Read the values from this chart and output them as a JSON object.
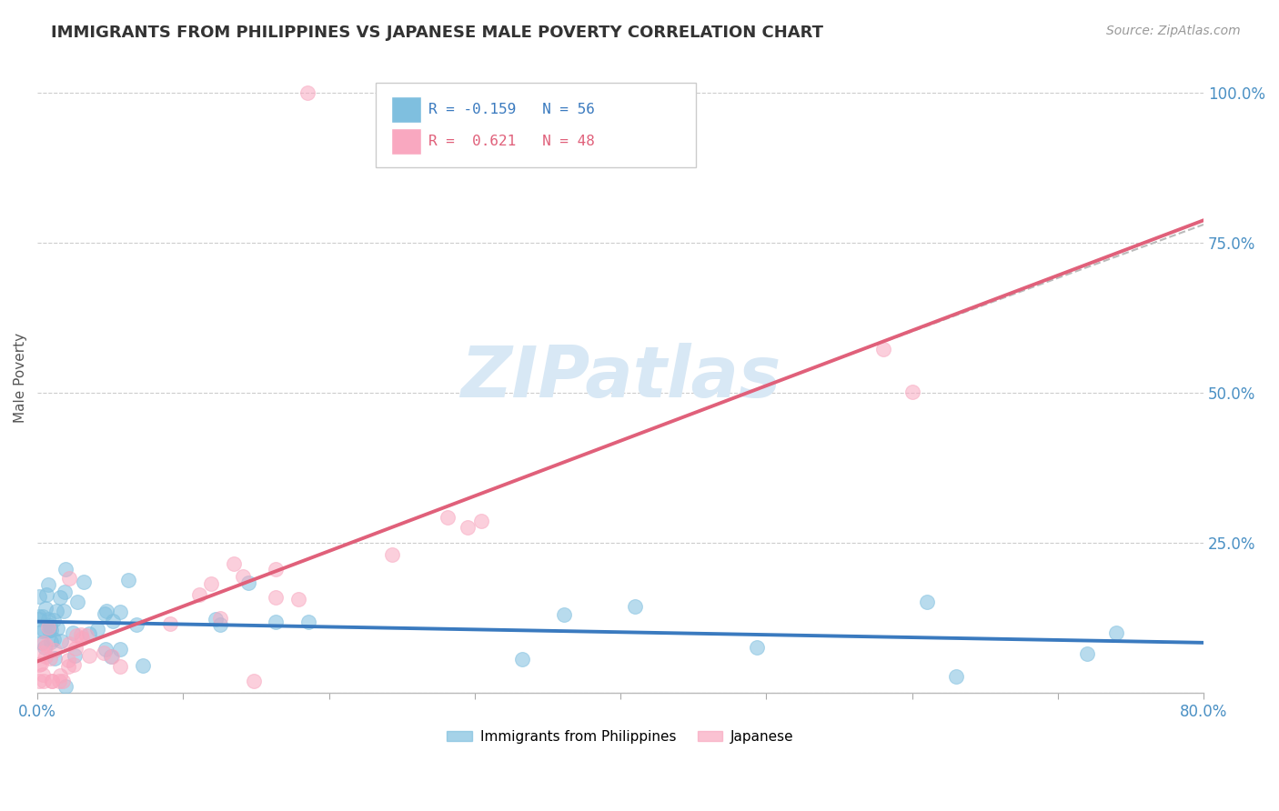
{
  "title": "IMMIGRANTS FROM PHILIPPINES VS JAPANESE MALE POVERTY CORRELATION CHART",
  "source": "Source: ZipAtlas.com",
  "ylabel": "Male Poverty",
  "xlim": [
    0.0,
    0.8
  ],
  "ylim": [
    0.0,
    1.05
  ],
  "xtick_positions": [
    0.0,
    0.1,
    0.2,
    0.3,
    0.4,
    0.5,
    0.6,
    0.7,
    0.8
  ],
  "xticklabels": [
    "0.0%",
    "",
    "",
    "",
    "",
    "",
    "",
    "",
    "80.0%"
  ],
  "ytick_positions": [
    0.0,
    0.25,
    0.5,
    0.75,
    1.0
  ],
  "ytick_labels": [
    "",
    "25.0%",
    "50.0%",
    "75.0%",
    "100.0%"
  ],
  "color_blue": "#7fbfdf",
  "color_pink": "#f9a8c0",
  "color_blue_line": "#3a7abf",
  "color_pink_line": "#e0607a",
  "color_dashed_line": "#bbbbbb",
  "background_color": "#ffffff",
  "grid_color": "#cccccc",
  "watermark_color": "#d8e8f5",
  "title_color": "#333333",
  "source_color": "#999999",
  "axis_label_color": "#555555",
  "tick_color": "#4a90c4",
  "n_blue": 56,
  "n_pink": 48,
  "legend_label1": "Immigrants from Philippines",
  "legend_label2": "Japanese"
}
